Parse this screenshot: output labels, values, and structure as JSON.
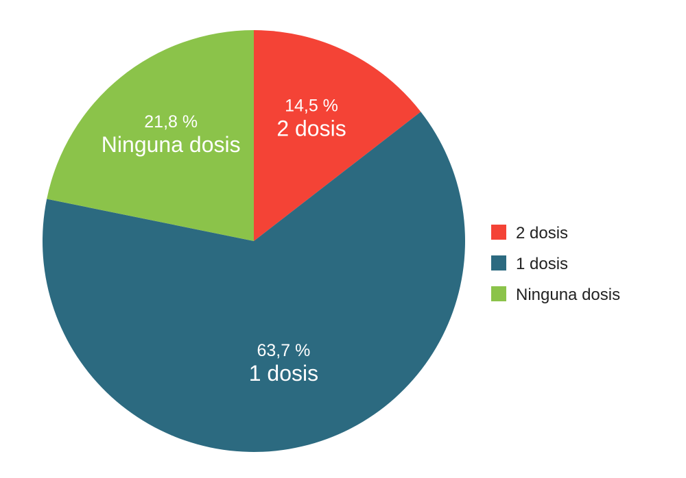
{
  "chart_data": {
    "type": "pie",
    "start_angle_deg": 0,
    "direction": "clockwise",
    "legend_position": "right",
    "slices": [
      {
        "name": "2 dosis",
        "value": 14.5,
        "percent_label": "14,5 %",
        "color": "#f44336"
      },
      {
        "name": "1 dosis",
        "value": 63.7,
        "percent_label": "63,7 %",
        "color": "#2c6a80"
      },
      {
        "name": "Ninguna dosis",
        "value": 21.8,
        "percent_label": "21,8 %",
        "color": "#8bc34a"
      }
    ]
  }
}
